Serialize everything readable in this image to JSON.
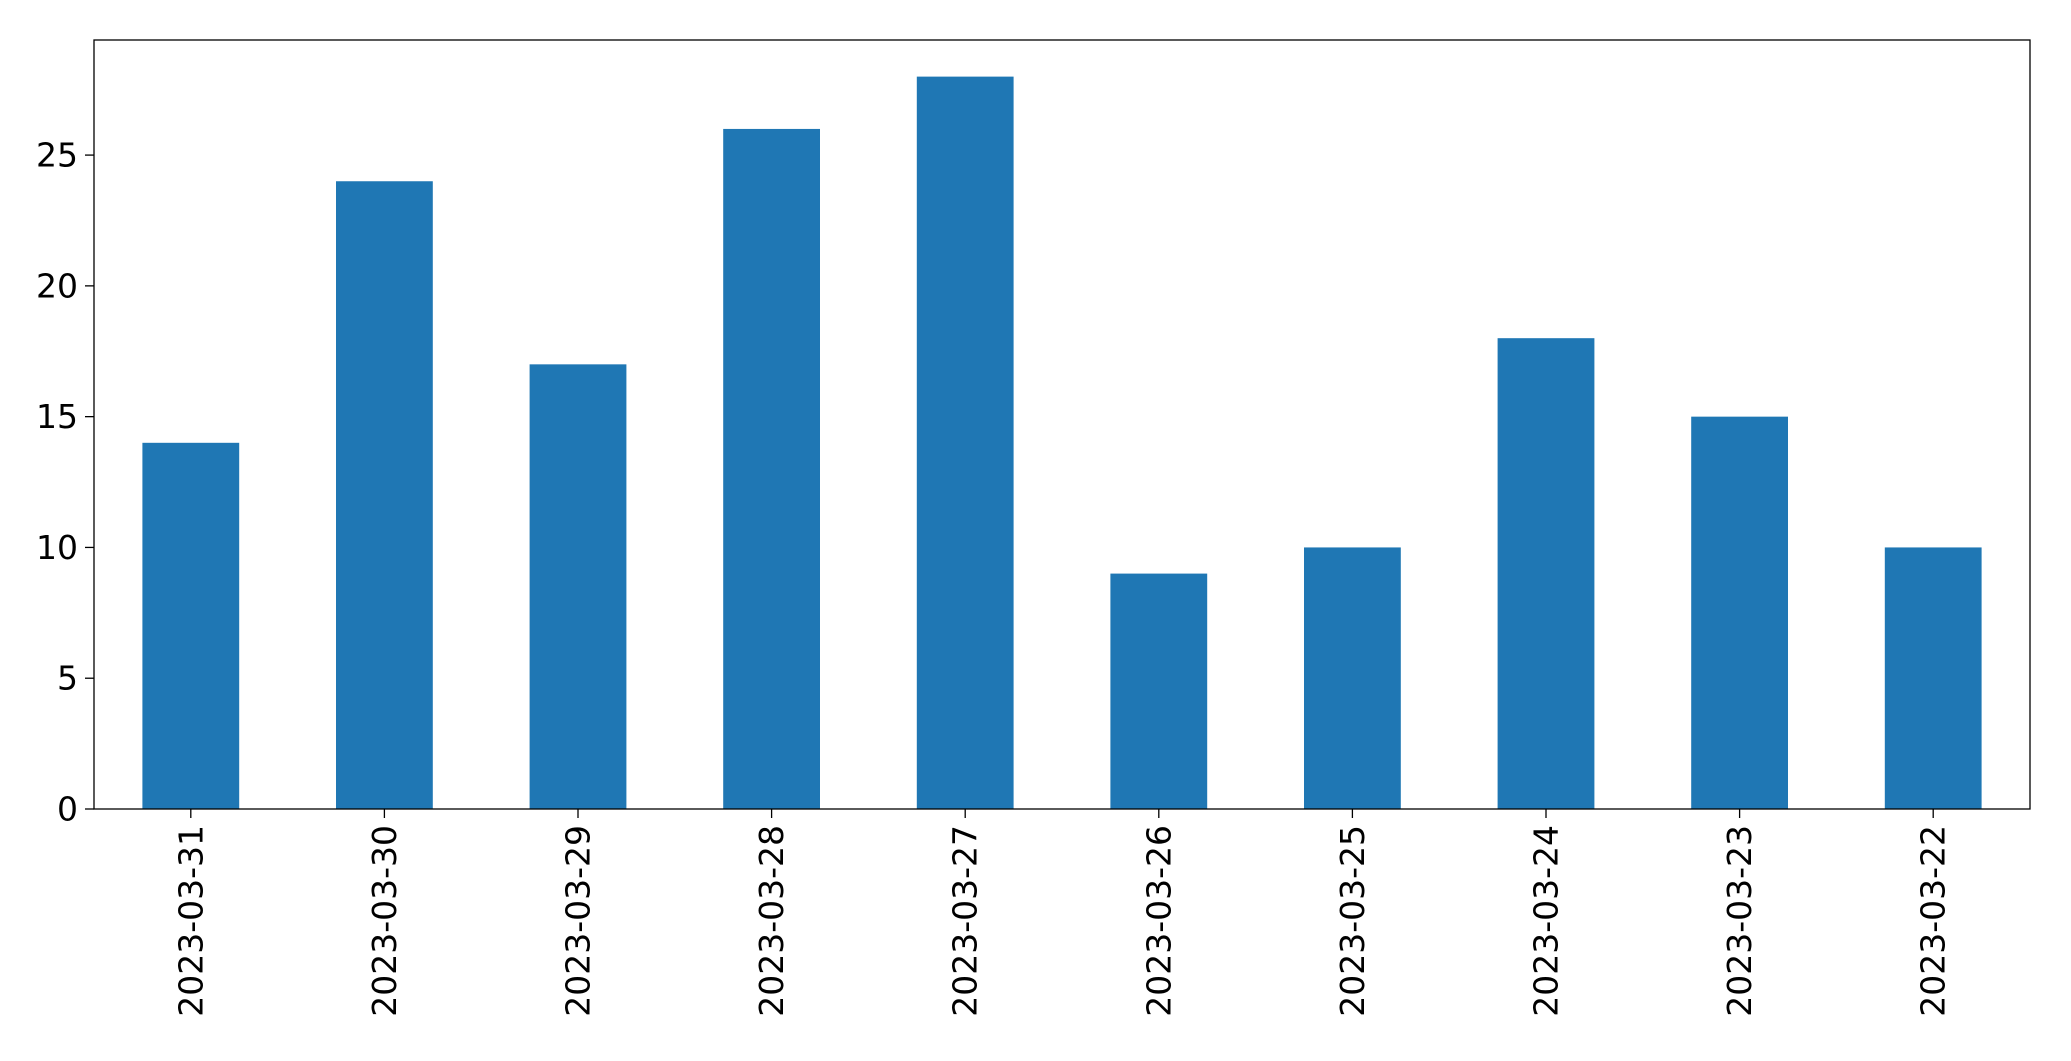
{
  "chart_data": {
    "type": "bar",
    "categories": [
      "2023-03-31",
      "2023-03-30",
      "2023-03-29",
      "2023-03-28",
      "2023-03-27",
      "2023-03-26",
      "2023-03-25",
      "2023-03-24",
      "2023-03-23",
      "2023-03-22"
    ],
    "values": [
      14,
      24,
      17,
      26,
      28,
      9,
      10,
      18,
      15,
      10
    ],
    "title": "",
    "xlabel": "",
    "ylabel": "",
    "ylim": [
      0,
      29.4
    ],
    "yticks": [
      0,
      5,
      10,
      15,
      20,
      25
    ],
    "grid": false,
    "bar_color": "#1f77b4"
  }
}
